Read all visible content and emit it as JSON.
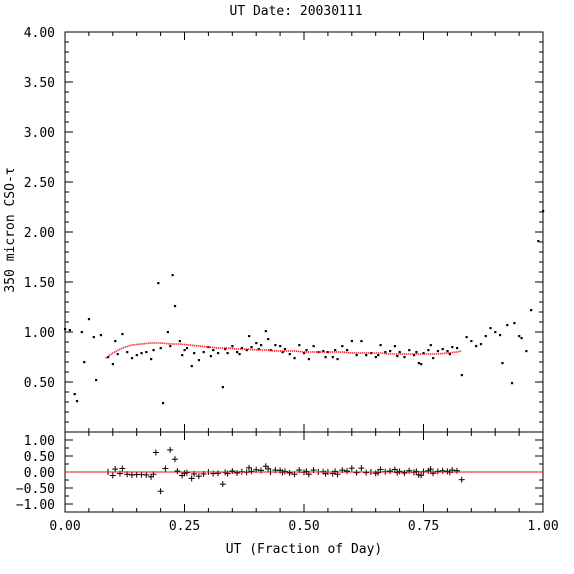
{
  "chart_data": [
    {
      "panel": "main",
      "type": "scatter",
      "title": "UT Date: 20030111",
      "xlabel": "",
      "ylabel": "350 micron CSO-τ",
      "xlim": [
        0.0,
        1.0
      ],
      "ylim": [
        0.0,
        4.0
      ],
      "yticks": [
        0.5,
        1.0,
        1.5,
        2.0,
        2.5,
        3.0,
        3.5,
        4.0
      ],
      "ytick_labels": [
        "0.50",
        "1.00",
        "1.50",
        "2.00",
        "2.50",
        "3.00",
        "3.50",
        "4.00"
      ],
      "grid": false,
      "series": [
        {
          "marker": "dot",
          "color": "#000000",
          "points": [
            [
              0.0,
              1.03
            ],
            [
              0.01,
              1.02
            ],
            [
              0.02,
              0.38
            ],
            [
              0.025,
              0.31
            ],
            [
              0.035,
              1.0
            ],
            [
              0.04,
              0.7
            ],
            [
              0.05,
              1.13
            ],
            [
              0.06,
              0.95
            ],
            [
              0.065,
              0.52
            ],
            [
              0.075,
              0.97
            ],
            [
              0.09,
              0.75
            ],
            [
              0.1,
              0.68
            ],
            [
              0.105,
              0.91
            ],
            [
              0.11,
              0.78
            ],
            [
              0.12,
              0.98
            ],
            [
              0.13,
              0.8
            ],
            [
              0.14,
              0.74
            ],
            [
              0.15,
              0.77
            ],
            [
              0.16,
              0.79
            ],
            [
              0.17,
              0.8
            ],
            [
              0.18,
              0.73
            ],
            [
              0.185,
              0.82
            ],
            [
              0.195,
              1.49
            ],
            [
              0.2,
              0.84
            ],
            [
              0.205,
              0.29
            ],
            [
              0.215,
              1.0
            ],
            [
              0.22,
              0.86
            ],
            [
              0.225,
              1.57
            ],
            [
              0.23,
              1.26
            ],
            [
              0.24,
              0.91
            ],
            [
              0.245,
              0.77
            ],
            [
              0.25,
              0.82
            ],
            [
              0.255,
              0.84
            ],
            [
              0.265,
              0.66
            ],
            [
              0.27,
              0.79
            ],
            [
              0.28,
              0.72
            ],
            [
              0.29,
              0.8
            ],
            [
              0.3,
              0.85
            ],
            [
              0.305,
              0.76
            ],
            [
              0.31,
              0.82
            ],
            [
              0.32,
              0.79
            ],
            [
              0.33,
              0.45
            ],
            [
              0.335,
              0.83
            ],
            [
              0.34,
              0.79
            ],
            [
              0.35,
              0.86
            ],
            [
              0.36,
              0.8
            ],
            [
              0.365,
              0.78
            ],
            [
              0.37,
              0.84
            ],
            [
              0.38,
              0.82
            ],
            [
              0.385,
              0.96
            ],
            [
              0.39,
              0.85
            ],
            [
              0.4,
              0.89
            ],
            [
              0.405,
              0.83
            ],
            [
              0.41,
              0.87
            ],
            [
              0.42,
              1.01
            ],
            [
              0.425,
              0.93
            ],
            [
              0.43,
              0.82
            ],
            [
              0.44,
              0.87
            ],
            [
              0.45,
              0.86
            ],
            [
              0.455,
              0.8
            ],
            [
              0.46,
              0.83
            ],
            [
              0.47,
              0.78
            ],
            [
              0.48,
              0.74
            ],
            [
              0.49,
              0.87
            ],
            [
              0.5,
              0.79
            ],
            [
              0.505,
              0.82
            ],
            [
              0.51,
              0.73
            ],
            [
              0.52,
              0.86
            ],
            [
              0.53,
              0.8
            ],
            [
              0.54,
              0.81
            ],
            [
              0.545,
              0.75
            ],
            [
              0.55,
              0.8
            ],
            [
              0.56,
              0.75
            ],
            [
              0.565,
              0.82
            ],
            [
              0.57,
              0.73
            ],
            [
              0.58,
              0.86
            ],
            [
              0.59,
              0.82
            ],
            [
              0.6,
              0.91
            ],
            [
              0.61,
              0.77
            ],
            [
              0.62,
              0.91
            ],
            [
              0.63,
              0.77
            ],
            [
              0.64,
              0.79
            ],
            [
              0.65,
              0.75
            ],
            [
              0.655,
              0.77
            ],
            [
              0.66,
              0.87
            ],
            [
              0.67,
              0.8
            ],
            [
              0.68,
              0.81
            ],
            [
              0.69,
              0.86
            ],
            [
              0.695,
              0.76
            ],
            [
              0.7,
              0.8
            ],
            [
              0.71,
              0.75
            ],
            [
              0.72,
              0.82
            ],
            [
              0.73,
              0.77
            ],
            [
              0.735,
              0.8
            ],
            [
              0.74,
              0.69
            ],
            [
              0.745,
              0.68
            ],
            [
              0.75,
              0.79
            ],
            [
              0.76,
              0.82
            ],
            [
              0.765,
              0.87
            ],
            [
              0.77,
              0.74
            ],
            [
              0.78,
              0.81
            ],
            [
              0.79,
              0.83
            ],
            [
              0.8,
              0.81
            ],
            [
              0.805,
              0.78
            ],
            [
              0.81,
              0.85
            ],
            [
              0.82,
              0.84
            ],
            [
              0.83,
              0.57
            ],
            [
              0.84,
              0.95
            ],
            [
              0.85,
              0.91
            ],
            [
              0.86,
              0.86
            ],
            [
              0.87,
              0.88
            ],
            [
              0.88,
              0.96
            ],
            [
              0.89,
              1.04
            ],
            [
              0.9,
              1.0
            ],
            [
              0.91,
              0.97
            ],
            [
              0.915,
              0.69
            ],
            [
              0.925,
              1.07
            ],
            [
              0.935,
              0.49
            ],
            [
              0.94,
              1.09
            ],
            [
              0.95,
              0.96
            ],
            [
              0.955,
              0.94
            ],
            [
              0.965,
              0.81
            ],
            [
              0.975,
              1.22
            ],
            [
              0.99,
              1.91
            ],
            [
              1.0,
              2.21
            ]
          ]
        },
        {
          "marker": "line",
          "color": "#e8141c",
          "points": [
            [
              0.085,
              0.74
            ],
            [
              0.1,
              0.79
            ],
            [
              0.12,
              0.84
            ],
            [
              0.14,
              0.87
            ],
            [
              0.16,
              0.88
            ],
            [
              0.18,
              0.89
            ],
            [
              0.2,
              0.89
            ],
            [
              0.22,
              0.88
            ],
            [
              0.24,
              0.88
            ],
            [
              0.26,
              0.87
            ],
            [
              0.28,
              0.86
            ],
            [
              0.3,
              0.85
            ],
            [
              0.32,
              0.84
            ],
            [
              0.34,
              0.84
            ],
            [
              0.36,
              0.83
            ],
            [
              0.38,
              0.83
            ],
            [
              0.4,
              0.82
            ],
            [
              0.42,
              0.82
            ],
            [
              0.44,
              0.81
            ],
            [
              0.46,
              0.81
            ],
            [
              0.48,
              0.81
            ],
            [
              0.5,
              0.8
            ],
            [
              0.52,
              0.8
            ],
            [
              0.54,
              0.8
            ],
            [
              0.56,
              0.8
            ],
            [
              0.58,
              0.8
            ],
            [
              0.6,
              0.79
            ],
            [
              0.62,
              0.79
            ],
            [
              0.64,
              0.79
            ],
            [
              0.66,
              0.79
            ],
            [
              0.68,
              0.78
            ],
            [
              0.7,
              0.78
            ],
            [
              0.72,
              0.78
            ],
            [
              0.74,
              0.78
            ],
            [
              0.76,
              0.78
            ],
            [
              0.78,
              0.78
            ],
            [
              0.8,
              0.79
            ],
            [
              0.82,
              0.8
            ],
            [
              0.83,
              0.81
            ]
          ]
        }
      ]
    },
    {
      "panel": "residual",
      "type": "scatter",
      "xlabel": "UT (Fraction of Day)",
      "ylabel": "",
      "xlim": [
        0.0,
        1.0
      ],
      "ylim": [
        -1.25,
        1.25
      ],
      "xticks": [
        0.0,
        0.25,
        0.5,
        0.75,
        1.0
      ],
      "xtick_labels": [
        "0.00",
        "0.25",
        "0.50",
        "0.75",
        "1.00"
      ],
      "yticks": [
        -1.0,
        -0.5,
        0.0,
        0.5,
        1.0
      ],
      "ytick_labels": [
        "−1.00",
        "−0.50",
        "0.00",
        "0.50",
        "1.00"
      ],
      "grid": false,
      "series": [
        {
          "marker": "plus",
          "color": "#000000",
          "points": [
            [
              0.09,
              0.0
            ],
            [
              0.1,
              -0.11
            ],
            [
              0.105,
              0.09
            ],
            [
              0.115,
              -0.05
            ],
            [
              0.12,
              0.11
            ],
            [
              0.13,
              -0.07
            ],
            [
              0.14,
              -0.09
            ],
            [
              0.15,
              -0.08
            ],
            [
              0.16,
              -0.08
            ],
            [
              0.17,
              -0.09
            ],
            [
              0.18,
              -0.15
            ],
            [
              0.185,
              -0.07
            ],
            [
              0.19,
              0.61
            ],
            [
              0.2,
              -0.6
            ],
            [
              0.21,
              0.11
            ],
            [
              0.22,
              0.69
            ],
            [
              0.23,
              0.4
            ],
            [
              0.235,
              0.03
            ],
            [
              0.245,
              -0.11
            ],
            [
              0.25,
              -0.04
            ],
            [
              0.255,
              -0.02
            ],
            [
              0.265,
              -0.2
            ],
            [
              0.27,
              -0.06
            ],
            [
              0.28,
              -0.13
            ],
            [
              0.29,
              -0.06
            ],
            [
              0.3,
              0.0
            ],
            [
              0.31,
              -0.05
            ],
            [
              0.32,
              -0.04
            ],
            [
              0.33,
              -0.38
            ],
            [
              0.335,
              -0.01
            ],
            [
              0.34,
              -0.05
            ],
            [
              0.35,
              0.03
            ],
            [
              0.36,
              -0.03
            ],
            [
              0.37,
              0.01
            ],
            [
              0.38,
              -0.01
            ],
            [
              0.385,
              0.13
            ],
            [
              0.39,
              0.02
            ],
            [
              0.4,
              0.07
            ],
            [
              0.41,
              0.05
            ],
            [
              0.42,
              0.18
            ],
            [
              0.425,
              0.1
            ],
            [
              0.43,
              0.0
            ],
            [
              0.44,
              0.06
            ],
            [
              0.45,
              0.05
            ],
            [
              0.455,
              -0.01
            ],
            [
              0.46,
              0.02
            ],
            [
              0.47,
              -0.03
            ],
            [
              0.48,
              -0.07
            ],
            [
              0.49,
              0.06
            ],
            [
              0.5,
              -0.01
            ],
            [
              0.505,
              0.02
            ],
            [
              0.51,
              -0.07
            ],
            [
              0.52,
              0.06
            ],
            [
              0.53,
              0.0
            ],
            [
              0.54,
              0.01
            ],
            [
              0.545,
              -0.05
            ],
            [
              0.55,
              0.0
            ],
            [
              0.56,
              -0.05
            ],
            [
              0.565,
              0.02
            ],
            [
              0.57,
              -0.07
            ],
            [
              0.58,
              0.06
            ],
            [
              0.59,
              0.03
            ],
            [
              0.6,
              0.12
            ],
            [
              0.61,
              -0.02
            ],
            [
              0.62,
              0.12
            ],
            [
              0.63,
              -0.02
            ],
            [
              0.64,
              0.0
            ],
            [
              0.65,
              -0.04
            ],
            [
              0.655,
              -0.02
            ],
            [
              0.66,
              0.08
            ],
            [
              0.67,
              0.01
            ],
            [
              0.68,
              0.03
            ],
            [
              0.69,
              0.08
            ],
            [
              0.695,
              -0.02
            ],
            [
              0.7,
              0.02
            ],
            [
              0.71,
              -0.03
            ],
            [
              0.72,
              0.04
            ],
            [
              0.73,
              -0.01
            ],
            [
              0.735,
              0.02
            ],
            [
              0.74,
              -0.09
            ],
            [
              0.745,
              -0.1
            ],
            [
              0.75,
              0.01
            ],
            [
              0.76,
              0.04
            ],
            [
              0.765,
              0.09
            ],
            [
              0.77,
              -0.04
            ],
            [
              0.78,
              0.02
            ],
            [
              0.79,
              0.04
            ],
            [
              0.8,
              0.02
            ],
            [
              0.805,
              -0.01
            ],
            [
              0.81,
              0.06
            ],
            [
              0.82,
              0.04
            ],
            [
              0.83,
              -0.24
            ]
          ]
        },
        {
          "marker": "hline",
          "color": "#e8141c",
          "y": 0.0
        }
      ]
    }
  ]
}
